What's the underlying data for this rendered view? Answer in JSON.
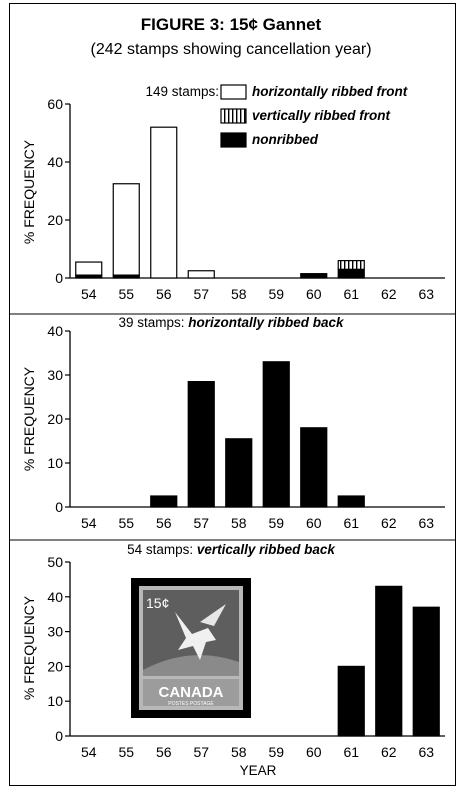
{
  "figure": {
    "title": "FIGURE 3: 15¢ Gannet",
    "subtitle": "(242 stamps showing cancellation year)",
    "xlabel": "YEAR",
    "ylabel": "% FREQUENCY"
  },
  "stamp": {
    "value_text": "15¢",
    "country_text": "CANADA",
    "bottom_text": "POSTES POSTAGE"
  },
  "chart_data": [
    {
      "type": "bar",
      "stacked": true,
      "title_prefix": "149 stamps:",
      "categories": [
        "54",
        "55",
        "56",
        "57",
        "58",
        "59",
        "60",
        "61",
        "62",
        "63"
      ],
      "ylim": [
        0,
        60
      ],
      "yticks": [
        0,
        20,
        40,
        60
      ],
      "ylabel": "% FREQUENCY",
      "legend": {
        "placement": "top-right"
      },
      "series": [
        {
          "name": "nonribbed",
          "fill": "black",
          "values": [
            1,
            1,
            0,
            0,
            0,
            0,
            1.5,
            3,
            0,
            0
          ]
        },
        {
          "name": "vertically ribbed front",
          "fill": "vstripe",
          "values": [
            0,
            0,
            0,
            0,
            0,
            0,
            0,
            3,
            0,
            0
          ]
        },
        {
          "name": "horizontally ribbed front",
          "fill": "white",
          "values": [
            4.5,
            31.5,
            52,
            2.5,
            0,
            0,
            0,
            0,
            0,
            0
          ]
        }
      ]
    },
    {
      "type": "bar",
      "title_prefix": "39 stamps:",
      "title_em": "horizontally ribbed back",
      "categories": [
        "54",
        "55",
        "56",
        "57",
        "58",
        "59",
        "60",
        "61",
        "62",
        "63"
      ],
      "ylim": [
        0,
        40
      ],
      "yticks": [
        0,
        10,
        20,
        30,
        40
      ],
      "ylabel": "% FREQUENCY",
      "series": [
        {
          "name": "horizontally ribbed back",
          "fill": "black",
          "values": [
            0,
            0,
            2.5,
            28.5,
            15.5,
            33,
            18,
            2.5,
            0,
            0
          ]
        }
      ]
    },
    {
      "type": "bar",
      "title_prefix": "54 stamps:",
      "title_em": "vertically ribbed back",
      "categories": [
        "54",
        "55",
        "56",
        "57",
        "58",
        "59",
        "60",
        "61",
        "62",
        "63"
      ],
      "ylim": [
        0,
        50
      ],
      "yticks": [
        0,
        10,
        20,
        30,
        40,
        50
      ],
      "ylabel": "% FREQUENCY",
      "xlabel": "YEAR",
      "series": [
        {
          "name": "vertically ribbed back",
          "fill": "black",
          "values": [
            0,
            0,
            0,
            0,
            0,
            0,
            0,
            20,
            43,
            37
          ]
        }
      ]
    }
  ]
}
